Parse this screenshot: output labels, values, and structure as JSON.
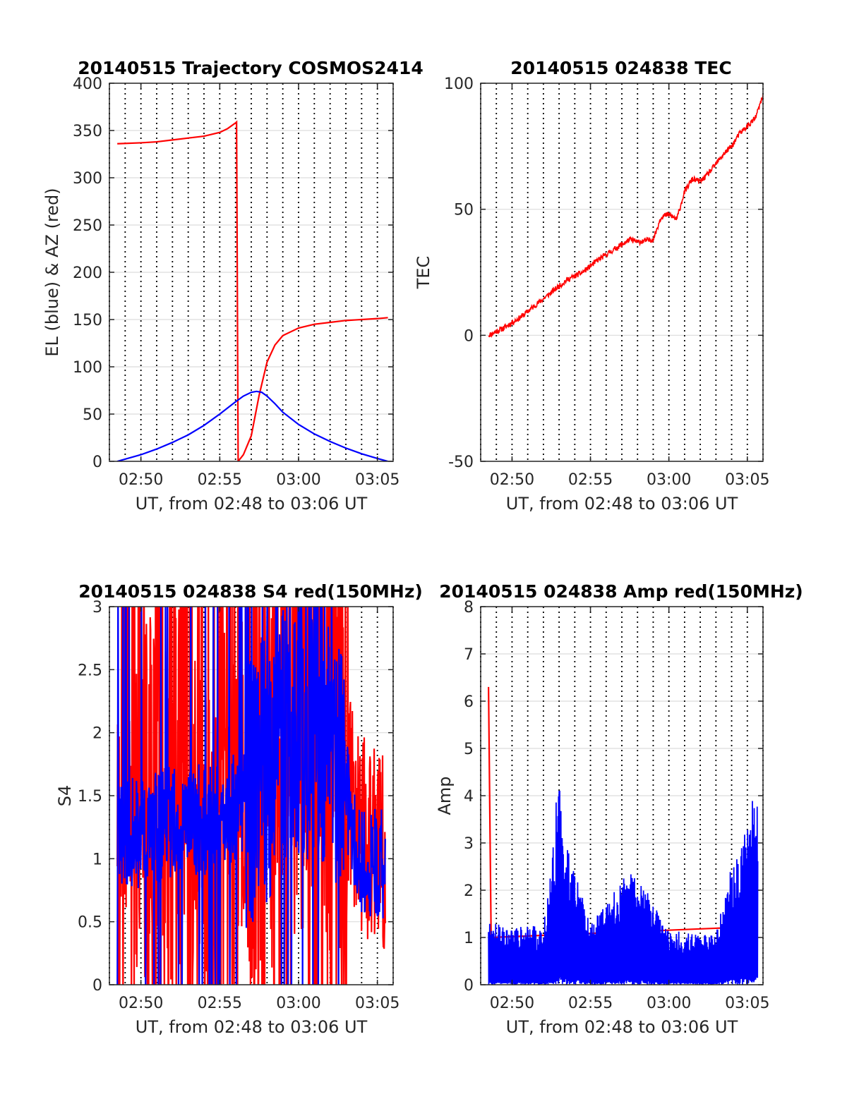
{
  "chart_data": [
    {
      "type": "line",
      "title": "20140515 Trajectory COSMOS2414",
      "xlabel": "UT, from 02:48 to 03:06 UT",
      "ylabel": "EL (blue) & AZ (red)",
      "xlim": [
        "02:48",
        "03:06"
      ],
      "ylim": [
        0,
        400
      ],
      "x_ticks": [
        "02:50",
        "02:55",
        "03:00",
        "03:05"
      ],
      "y_ticks": [
        "0",
        "50",
        "100",
        "150",
        "200",
        "250",
        "300",
        "350",
        "400"
      ],
      "grid": true,
      "colors": {
        "red": "#ff0000",
        "blue": "#0000ff"
      },
      "series": [
        {
          "color": "red",
          "x": [
            "02:48:30",
            "02:50:00",
            "02:51:00",
            "02:52:00",
            "02:53:00",
            "02:54:00",
            "02:55:00",
            "02:55:30",
            "02:56:00",
            "02:56:04",
            "02:56:10",
            "02:56:30",
            "02:57:00",
            "02:57:30",
            "02:58:00",
            "02:58:30",
            "02:59:00",
            "03:00:00",
            "03:01:00",
            "03:02:00",
            "03:03:00",
            "03:04:00",
            "03:05:00",
            "03:05:40"
          ],
          "values": [
            336,
            337,
            338,
            340,
            342,
            344,
            348,
            352,
            358,
            359,
            0,
            7,
            27,
            70,
            105,
            123,
            133,
            141,
            145,
            147,
            149,
            150,
            151,
            152
          ]
        },
        {
          "color": "blue",
          "x": [
            "02:48:30",
            "02:50:00",
            "02:51:00",
            "02:52:00",
            "02:53:00",
            "02:54:00",
            "02:55:00",
            "02:56:00",
            "02:56:30",
            "02:57:00",
            "02:57:20",
            "02:57:40",
            "02:58:00",
            "02:58:30",
            "02:59:00",
            "03:00:00",
            "03:01:00",
            "03:02:00",
            "03:03:00",
            "03:04:00",
            "03:05:00",
            "03:05:40"
          ],
          "values": [
            0,
            7,
            13,
            20,
            28,
            38,
            50,
            63,
            69,
            73,
            74,
            73,
            69,
            61,
            52,
            39,
            29,
            21,
            14,
            8,
            3,
            0
          ]
        }
      ]
    },
    {
      "type": "line",
      "title": "20140515 024838 TEC",
      "xlabel": "UT, from 02:48 to 03:06 UT",
      "ylabel": "TEC",
      "xlim": [
        "02:48",
        "03:06"
      ],
      "ylim": [
        -50,
        100
      ],
      "x_ticks": [
        "02:50",
        "02:55",
        "03:00",
        "03:05"
      ],
      "y_ticks": [
        "-50",
        "0",
        "50",
        "100"
      ],
      "grid": true,
      "colors": {
        "red": "#ff0000"
      },
      "series": [
        {
          "color": "red",
          "x": [
            "02:48:30",
            "02:49:30",
            "02:50:30",
            "02:51:30",
            "02:52:30",
            "02:53:30",
            "02:54:30",
            "02:55:30",
            "02:56:30",
            "02:57:30",
            "02:58:00",
            "02:59:00",
            "02:59:30",
            "03:00:00",
            "03:00:30",
            "03:01:00",
            "03:01:30",
            "03:02:00",
            "03:02:30",
            "03:03:00",
            "03:03:30",
            "03:04:00",
            "03:04:30",
            "03:05:00",
            "03:05:30",
            "03:06:00"
          ],
          "values": [
            0,
            3,
            7,
            12,
            17,
            22,
            25,
            30,
            34,
            38,
            37,
            38,
            47,
            48,
            46,
            57,
            62,
            61,
            64,
            68,
            72,
            75,
            80,
            83,
            86,
            95
          ]
        }
      ]
    },
    {
      "type": "line",
      "title": "20140515 024838 S4 red(150MHz)",
      "xlabel": "UT, from 02:48 to 03:06 UT",
      "ylabel": "S4",
      "xlim": [
        "02:48",
        "03:06"
      ],
      "ylim": [
        0,
        3
      ],
      "x_ticks": [
        "02:50",
        "02:55",
        "03:00",
        "03:05"
      ],
      "y_ticks": [
        "0",
        "0.5",
        "1",
        "1.5",
        "2",
        "2.5",
        "3"
      ],
      "grid": true,
      "colors": {
        "red": "#ff0000",
        "blue": "#0000ff"
      },
      "series": [
        {
          "color": "red",
          "x": [
            "02:48:30",
            "02:50:00",
            "02:52:00",
            "02:54:00",
            "02:56:00",
            "02:58:00",
            "03:00:00",
            "03:02:00",
            "03:04:00",
            "03:05:30"
          ],
          "values": [
            1.3,
            1.6,
            1.5,
            1.6,
            1.7,
            2.0,
            2.3,
            2.1,
            1.2,
            1.0
          ]
        },
        {
          "color": "blue",
          "x": [
            "02:48:30",
            "02:50:00",
            "02:52:00",
            "02:54:00",
            "02:56:00",
            "02:58:00",
            "03:00:00",
            "03:02:00",
            "03:04:00",
            "03:05:30"
          ],
          "values": [
            1.2,
            1.2,
            1.3,
            1.3,
            1.4,
            1.7,
            2.1,
            2.0,
            1.0,
            0.95
          ]
        }
      ]
    },
    {
      "type": "line",
      "title": "20140515 024838 Amp red(150MHz)",
      "xlabel": "UT, from 02:48 to 03:06 UT",
      "ylabel": "Amp",
      "xlim": [
        "02:48",
        "03:06"
      ],
      "ylim": [
        0,
        8
      ],
      "x_ticks": [
        "02:50",
        "02:55",
        "03:00",
        "03:05"
      ],
      "y_ticks": [
        "0",
        "1",
        "2",
        "3",
        "4",
        "5",
        "6",
        "7",
        "8"
      ],
      "grid": true,
      "colors": {
        "red": "#ff0000",
        "blue": "#0000ff"
      },
      "series": [
        {
          "color": "red",
          "x": [
            "02:48:30",
            "02:48:40",
            "03:03:20",
            "03:03:40",
            "03:04:00"
          ],
          "values": [
            6.3,
            1.0,
            1.2,
            1.0,
            1.5
          ]
        },
        {
          "color": "blue",
          "x": [
            "02:48:30",
            "02:50:00",
            "02:52:00",
            "02:52:40",
            "02:53:00",
            "02:53:20",
            "02:55:00",
            "02:57:40",
            "03:00:00",
            "03:03:00",
            "03:03:30",
            "03:04:30",
            "03:05:40"
          ],
          "values": [
            1.3,
            1.2,
            1.2,
            3.0,
            4.6,
            3.0,
            1.2,
            2.4,
            1.1,
            1.0,
            2.0,
            2.7,
            4.2
          ]
        }
      ]
    }
  ]
}
